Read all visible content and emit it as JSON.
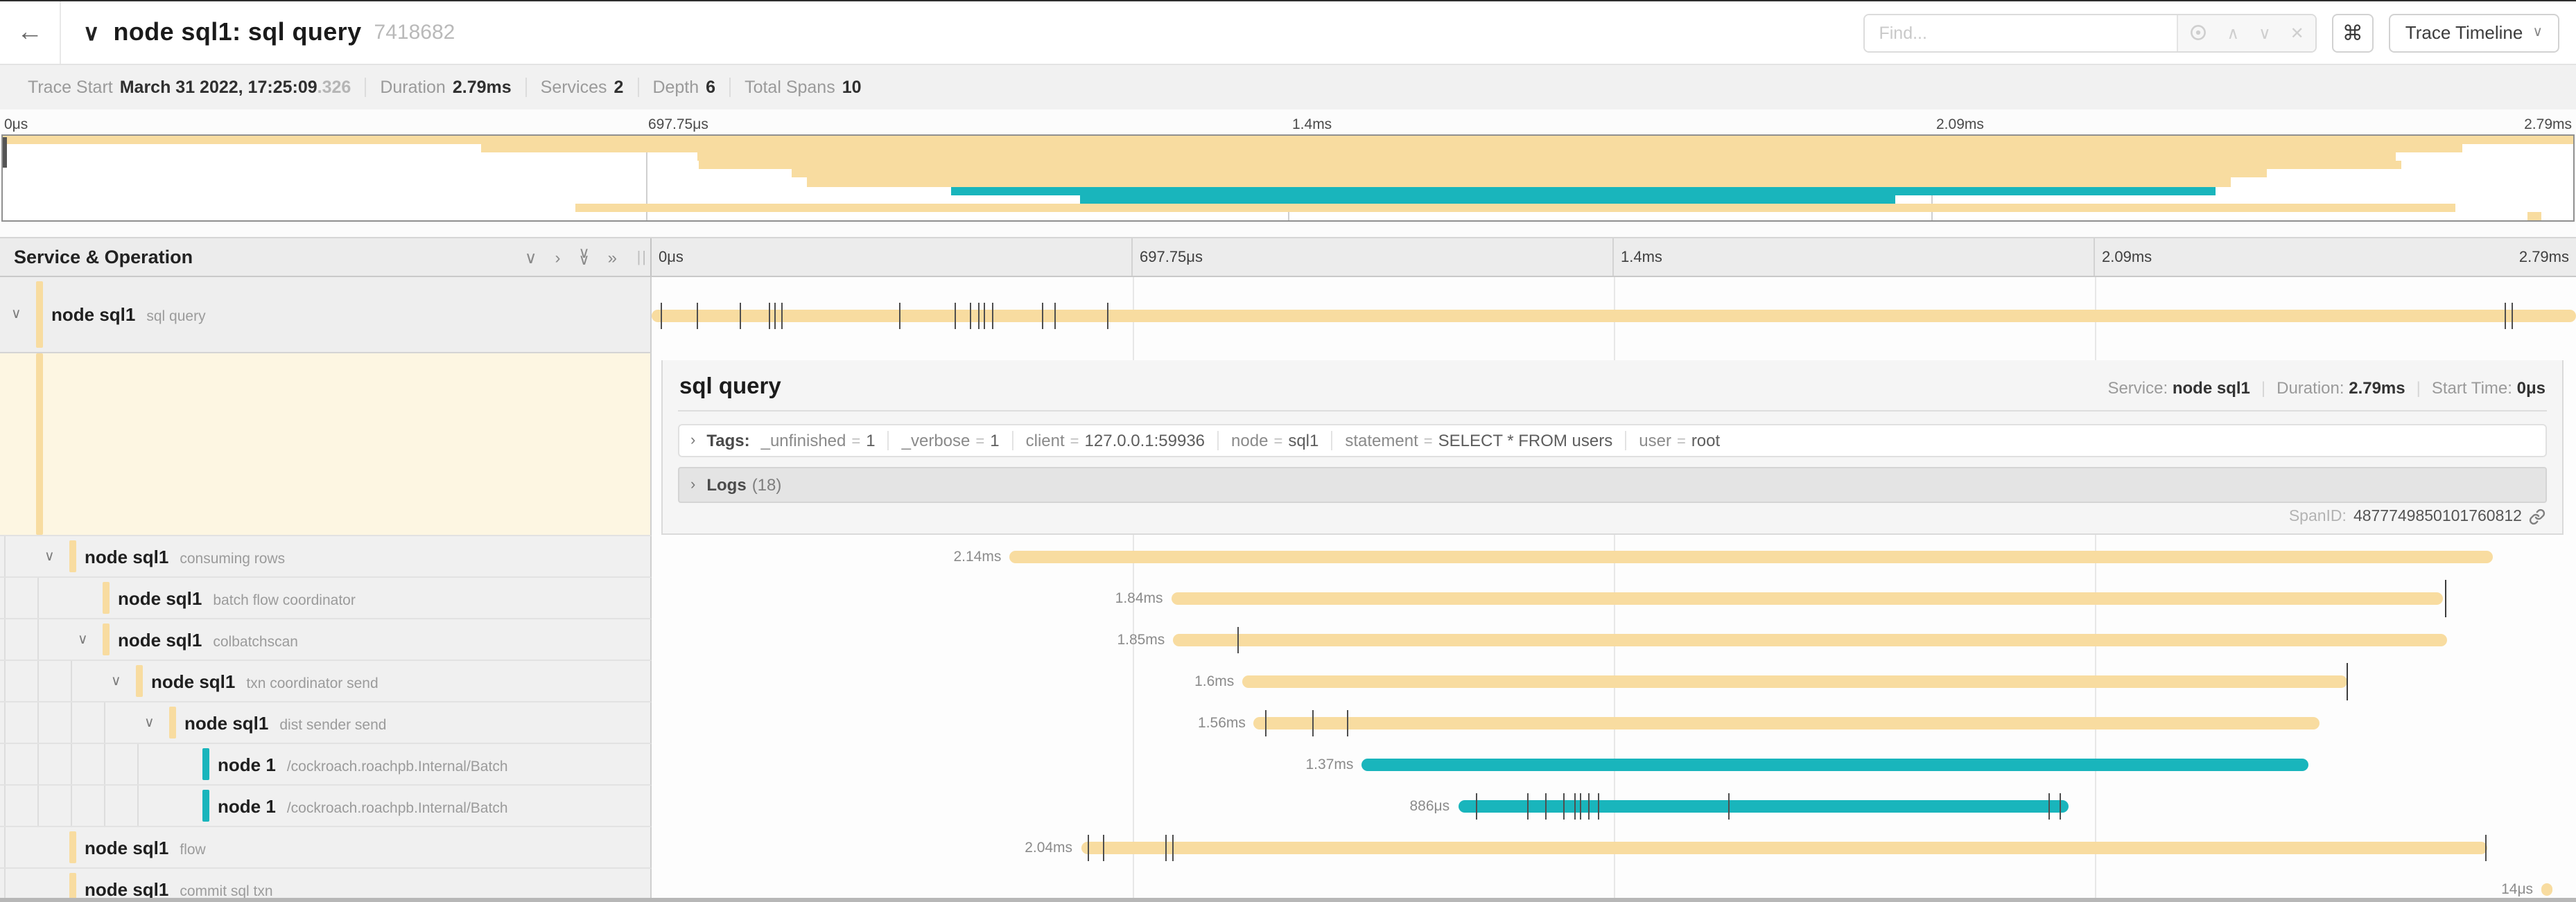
{
  "header": {
    "back_icon": "←",
    "collapse_icon": "∨",
    "title": "node sql1: sql query",
    "trace_id": "7418682",
    "find_placeholder": "Find...",
    "shortcut_label": "⌘",
    "view_dropdown_label": "Trace Timeline",
    "view_dropdown_caret": "∨"
  },
  "trace_info": {
    "items": [
      {
        "label": "Trace Start",
        "value": "March 31 2022, 17:25:09",
        "value_suffix": ".326"
      },
      {
        "label": "Duration",
        "value": "2.79ms",
        "value_suffix": ""
      },
      {
        "label": "Services",
        "value": "2",
        "value_suffix": ""
      },
      {
        "label": "Depth",
        "value": "6",
        "value_suffix": ""
      },
      {
        "label": "Total Spans",
        "value": "10",
        "value_suffix": ""
      }
    ]
  },
  "timeline_ticks": [
    "0μs",
    "697.75μs",
    "1.4ms",
    "2.09ms",
    "2.79ms"
  ],
  "left_header": {
    "title": "Service & Operation",
    "resize_handle": "||"
  },
  "colors": {
    "tan": "#f8dca0",
    "teal": "#19b5bc"
  },
  "spans": [
    {
      "service": "node sql1",
      "operation": "sql query",
      "depth": 0,
      "color": "tan",
      "expandable": true,
      "duration_label": "",
      "bar": {
        "start": 0,
        "width": 100
      },
      "ticks": [
        0.5,
        2.4,
        4.6,
        6.1,
        6.4,
        6.8,
        12.9,
        15.8,
        16.6,
        17.0,
        17.3,
        17.7,
        20.3,
        21.0,
        23.7,
        96.3,
        96.7
      ],
      "tall_ticks": []
    },
    {
      "service": "node sql1",
      "operation": "consuming rows",
      "depth": 1,
      "color": "tan",
      "expandable": true,
      "duration_label": "2.14ms",
      "bar": {
        "start": 18.6,
        "width": 77.1
      },
      "ticks": [],
      "tall_ticks": []
    },
    {
      "service": "node sql1",
      "operation": "batch flow coordinator",
      "depth": 2,
      "color": "tan",
      "expandable": false,
      "duration_label": "1.84ms",
      "bar": {
        "start": 27.0,
        "width": 66.1
      },
      "ticks": [],
      "tall_ticks": [
        93.2
      ]
    },
    {
      "service": "node sql1",
      "operation": "colbatchscan",
      "depth": 2,
      "color": "tan",
      "expandable": true,
      "duration_label": "1.85ms",
      "bar": {
        "start": 27.1,
        "width": 66.2
      },
      "ticks": [
        30.5
      ],
      "tall_ticks": []
    },
    {
      "service": "node sql1",
      "operation": "txn coordinator send",
      "depth": 3,
      "color": "tan",
      "expandable": true,
      "duration_label": "1.6ms",
      "bar": {
        "start": 30.7,
        "width": 57.4
      },
      "ticks": [],
      "tall_ticks": [
        88.1
      ]
    },
    {
      "service": "node sql1",
      "operation": "dist sender send",
      "depth": 4,
      "color": "tan",
      "expandable": true,
      "duration_label": "1.56ms",
      "bar": {
        "start": 31.3,
        "width": 55.4
      },
      "ticks": [
        31.9,
        34.4,
        36.2
      ],
      "tall_ticks": []
    },
    {
      "service": "node 1",
      "operation": "/cockroach.roachpb.Internal/Batch",
      "depth": 5,
      "color": "teal",
      "expandable": false,
      "duration_label": "1.37ms",
      "bar": {
        "start": 36.9,
        "width": 49.2
      },
      "ticks": [],
      "tall_ticks": []
    },
    {
      "service": "node 1",
      "operation": "/cockroach.roachpb.Internal/Batch",
      "depth": 5,
      "color": "teal",
      "expandable": false,
      "duration_label": "886μs",
      "bar": {
        "start": 41.9,
        "width": 31.7
      },
      "ticks": [
        42.9,
        45.5,
        46.5,
        47.4,
        48.0,
        48.3,
        48.7,
        49.2,
        56.0,
        72.6,
        73.2
      ],
      "tall_ticks": []
    },
    {
      "service": "node sql1",
      "operation": "flow",
      "depth": 1,
      "color": "tan",
      "expandable": false,
      "duration_label": "2.04ms",
      "bar": {
        "start": 22.3,
        "width": 73.1
      },
      "ticks": [
        22.7,
        23.5,
        26.7,
        27.1,
        95.3
      ],
      "tall_ticks": []
    },
    {
      "service": "node sql1",
      "operation": "commit sql txn",
      "depth": 1,
      "color": "tan",
      "expandable": false,
      "duration_label": "14μs",
      "bar": {
        "start": 98.2,
        "width": 0.55
      },
      "ticks": [],
      "tall_ticks": []
    }
  ],
  "detail": {
    "title": "sql query",
    "meta": {
      "service_label": "Service:",
      "service_value": "node sql1",
      "duration_label": "Duration:",
      "duration_value": "2.79ms",
      "start_label": "Start Time:",
      "start_value": "0μs"
    },
    "tags": {
      "label": "Tags:",
      "chevron": "›",
      "items": [
        {
          "key": "_unfinished",
          "value": "1"
        },
        {
          "key": "_verbose",
          "value": "1"
        },
        {
          "key": "client",
          "value": "127.0.0.1:59936"
        },
        {
          "key": "node",
          "value": "sql1"
        },
        {
          "key": "statement",
          "value": "SELECT * FROM users"
        },
        {
          "key": "user",
          "value": "root"
        }
      ]
    },
    "logs": {
      "label": "Logs",
      "count": "(18)",
      "chevron": "›"
    },
    "span_id": {
      "label": "SpanID:",
      "value": "4877749850101760812"
    }
  }
}
